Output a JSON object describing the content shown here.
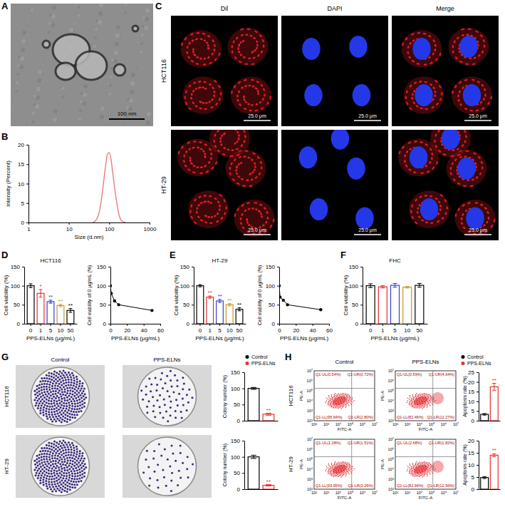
{
  "figure": {
    "panel_letters": [
      "A",
      "B",
      "C",
      "D",
      "E",
      "F",
      "G",
      "H"
    ],
    "tem": {
      "scale_bar": "100 nm"
    },
    "confocal": {
      "columns": [
        "Dil",
        "DAPI",
        "Merge"
      ],
      "rows": [
        "HCT116",
        "HT-29"
      ],
      "scale_bar": "25.0 μm"
    },
    "colony": {
      "columns": [
        "Control",
        "PPS-ELNs"
      ],
      "rows": [
        "HCT116",
        "HT-29"
      ]
    },
    "flow": {
      "columns": [
        "Control",
        "PPS-ELNs"
      ],
      "rows": [
        "HCT116",
        "HT-29"
      ],
      "x_label": "FITC-A",
      "y_label": "PE-A",
      "x_ticks": [
        "10²",
        "10³",
        "10⁴",
        "10⁵",
        "10⁶",
        "10⁷"
      ],
      "y_ticks": [
        "10²",
        "10³",
        "10⁴",
        "10⁵",
        "10⁶",
        "10⁷"
      ],
      "quadrants": [
        [
          [
            "Q1-UL(0.54%)",
            "Q1-UR(0.72%)",
            "Q1-LL(95.94%)",
            "Q1-LR(2.80%)"
          ],
          [
            "Q1-UL(0.59%)",
            "Q1-UR(4.64%)",
            "Q1-LL(82.46%)",
            "Q1-LR(12.27%)"
          ]
        ],
        [
          [
            "Q1-UL(1.28%)",
            "Q1-UR(1.51%)",
            "Q1-LL(93.95%)",
            "Q1-LR(3.26%)"
          ],
          [
            "Q1-UL(2.68%)",
            "Q1-UR(1.82%)",
            "Q1-LL(82.94%)",
            "Q1-LR(12.56%)"
          ]
        ]
      ]
    }
  },
  "chart_data": [
    {
      "type": "line",
      "x_label": "Size (d.nm)",
      "y_label": "Intensity (Percent)",
      "x": [
        40,
        50,
        60,
        70,
        80,
        90,
        100,
        110,
        120,
        140,
        160,
        180,
        200,
        250
      ],
      "values": [
        0,
        1,
        4,
        9,
        14,
        17.5,
        18,
        16.5,
        13.5,
        8,
        4,
        1.5,
        0.5,
        0
      ],
      "color": "#e87d7d",
      "line_style": "smooth",
      "log": "x",
      "xlim": [
        1,
        1000
      ],
      "xticks": [
        1,
        10,
        100,
        1000
      ],
      "ylim": [
        0,
        20
      ],
      "yticks": [
        0,
        5,
        10,
        15,
        20
      ]
    },
    {
      "type": "bar",
      "title": "HCT116",
      "x_label": "PPS-ELNs (μg/mL)",
      "y_label": "Cell viability (%)",
      "categories": [
        "0",
        "1",
        "5",
        "10",
        "50"
      ],
      "values": [
        100,
        80,
        58,
        48,
        35
      ],
      "errors": [
        5,
        10,
        4,
        3,
        5
      ],
      "annotations": [
        null,
        "*",
        "**",
        "**",
        "**"
      ],
      "colors": [
        "#000000",
        "#e8302a",
        "#2f3fd6",
        "#c8962e",
        "#000000"
      ],
      "ylim": [
        0,
        150
      ],
      "yticks": [
        0,
        50,
        100,
        150
      ]
    },
    {
      "type": "line",
      "x_label": "PPS-ELNs (μg/mL)",
      "y_label": "Cell viability of 0 μg/mL (%)",
      "x": [
        0,
        1,
        5,
        10,
        50
      ],
      "values": [
        100,
        80,
        60,
        50,
        35
      ],
      "color": "#000000",
      "marker": "circle",
      "line_style": "solid",
      "xlim": [
        0,
        60
      ],
      "xticks": [
        0,
        20,
        40,
        60
      ],
      "ylim": [
        0,
        150
      ],
      "yticks": [
        0,
        50,
        100,
        150
      ]
    },
    {
      "type": "bar",
      "title": "HT-29",
      "x_label": "PPS-ELNs (μg/mL)",
      "y_label": "Cell viability (%)",
      "categories": [
        "0",
        "1",
        "5",
        "10",
        "50"
      ],
      "values": [
        100,
        70,
        60,
        50,
        38
      ],
      "errors": [
        3,
        3,
        4,
        3,
        4
      ],
      "annotations": [
        null,
        "**",
        "**",
        "**",
        "**"
      ],
      "colors": [
        "#000000",
        "#e8302a",
        "#2f3fd6",
        "#c8962e",
        "#000000"
      ],
      "ylim": [
        0,
        150
      ],
      "yticks": [
        0,
        50,
        100,
        150
      ]
    },
    {
      "type": "line",
      "x_label": "PPS-ELNs (μg/mL)",
      "y_label": "Cell viability of 0 μg/mL (%)",
      "x": [
        0,
        1,
        5,
        10,
        50
      ],
      "values": [
        100,
        70,
        62,
        50,
        37
      ],
      "color": "#000000",
      "marker": "circle",
      "line_style": "solid",
      "xlim": [
        0,
        60
      ],
      "xticks": [
        0,
        20,
        40,
        60
      ],
      "ylim": [
        0,
        150
      ],
      "yticks": [
        0,
        50,
        100,
        150
      ]
    },
    {
      "type": "bar",
      "title": "FHC",
      "x_label": "PPS-ELNs (μg/mL)",
      "y_label": "Cell viability (%)",
      "categories": [
        "0",
        "1",
        "5",
        "10",
        "50"
      ],
      "values": [
        100,
        97,
        101,
        96,
        101
      ],
      "errors": [
        5,
        3,
        5,
        2,
        5
      ],
      "colors": [
        "#000000",
        "#e8302a",
        "#2f3fd6",
        "#c8962e",
        "#000000"
      ],
      "ylim": [
        0,
        150
      ],
      "yticks": [
        0,
        50,
        100,
        150
      ]
    },
    {
      "type": "bar",
      "y_label": "Colony number (%)",
      "categories": [
        null,
        null
      ],
      "series": [
        {
          "name": "Control",
          "color": "#000000",
          "values": [
            100,
            null
          ],
          "errors": [
            3,
            null
          ]
        },
        {
          "name": "PPS-ELNs",
          "color": "#e8302a",
          "values": [
            null,
            20
          ],
          "errors": [
            null,
            3
          ]
        }
      ],
      "annotations": [
        null,
        "**"
      ],
      "legend": "top",
      "ylim": [
        0,
        150
      ],
      "yticks": [
        0,
        50,
        100,
        150
      ]
    },
    {
      "type": "bar",
      "y_label": "Colony number (%)",
      "categories": [
        null,
        null
      ],
      "values": [
        100,
        12
      ],
      "errors": [
        5,
        2
      ],
      "colors": [
        "#000000",
        "#e8302a"
      ],
      "annotations": [
        null,
        "**"
      ],
      "ylim": [
        0,
        150
      ],
      "yticks": [
        0,
        50,
        100,
        150
      ]
    },
    {
      "type": "bar",
      "y_label": "Apoptosis rate (%)",
      "categories": [
        null,
        null
      ],
      "series": [
        {
          "name": "Control",
          "color": "#000000",
          "values": [
            3.3,
            null
          ],
          "errors": [
            0.4,
            null
          ]
        },
        {
          "name": "PPS-ELNs",
          "color": "#e8302a",
          "values": [
            null,
            17.5
          ],
          "errors": [
            null,
            1.8
          ]
        }
      ],
      "annotations": [
        null,
        "**"
      ],
      "legend": "top",
      "ylim": [
        0,
        25
      ],
      "yticks": [
        0,
        5,
        10,
        15,
        20,
        25
      ]
    },
    {
      "type": "bar",
      "y_label": "Apoptosis rate (%)",
      "categories": [
        null,
        null
      ],
      "values": [
        4.8,
        14
      ],
      "errors": [
        0.4,
        0.6
      ],
      "colors": [
        "#000000",
        "#e8302a"
      ],
      "annotations": [
        null,
        "**"
      ],
      "ylim": [
        0,
        20
      ],
      "yticks": [
        0,
        5,
        10,
        15,
        20
      ]
    }
  ]
}
